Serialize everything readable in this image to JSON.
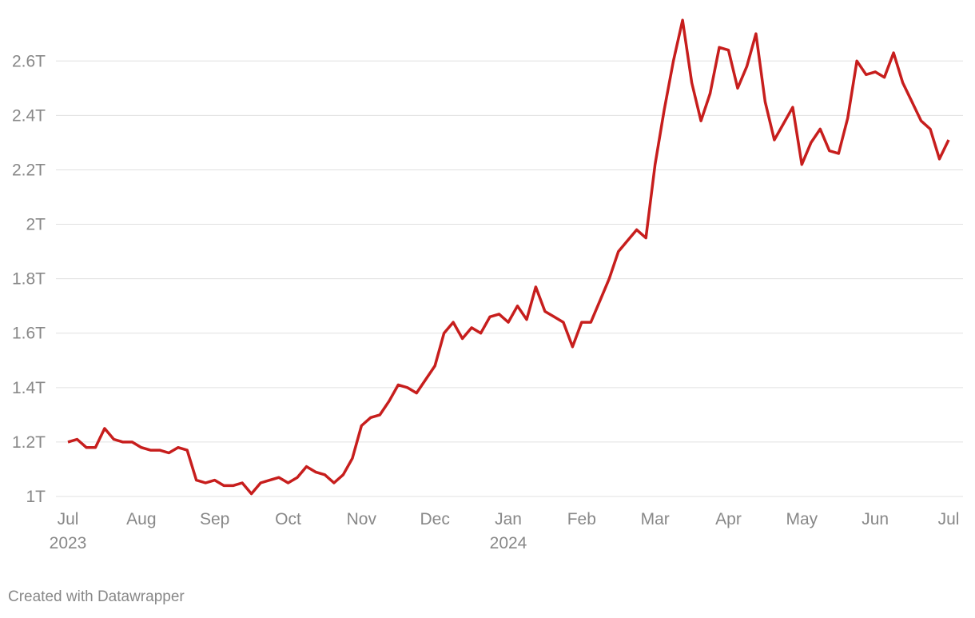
{
  "chart_data": {
    "type": "line",
    "source": "Created with Datawrapper",
    "categories": [
      "Jul",
      null,
      null,
      null,
      null,
      null,
      null,
      null,
      "Aug",
      null,
      null,
      null,
      null,
      null,
      null,
      null,
      "Sep",
      null,
      null,
      null,
      null,
      null,
      null,
      null,
      "Oct",
      null,
      null,
      null,
      null,
      null,
      null,
      null,
      "Nov",
      null,
      null,
      null,
      null,
      null,
      null,
      null,
      "Dec",
      null,
      null,
      null,
      null,
      null,
      null,
      null,
      "Jan",
      null,
      null,
      null,
      null,
      null,
      null,
      null,
      "Feb",
      null,
      null,
      null,
      null,
      null,
      null,
      null,
      "Mar",
      null,
      null,
      null,
      null,
      null,
      null,
      null,
      "Apr",
      null,
      null,
      null,
      null,
      null,
      null,
      null,
      "May",
      null,
      null,
      null,
      null,
      null,
      null,
      null,
      "Jun",
      null,
      null,
      null,
      null,
      null,
      null,
      null,
      "Jul"
    ],
    "category_years": [
      "2023",
      null,
      null,
      null,
      null,
      null,
      null,
      null,
      null,
      null,
      null,
      null,
      null,
      null,
      null,
      null,
      null,
      null,
      null,
      null,
      null,
      null,
      null,
      null,
      null,
      null,
      null,
      null,
      null,
      null,
      null,
      null,
      null,
      null,
      null,
      null,
      null,
      null,
      null,
      null,
      null,
      null,
      null,
      null,
      null,
      null,
      null,
      null,
      "2024",
      null,
      null,
      null,
      null,
      null,
      null,
      null,
      null,
      null,
      null,
      null,
      null,
      null,
      null,
      null,
      null,
      null,
      null,
      null,
      null,
      null,
      null,
      null,
      null,
      null,
      null,
      null,
      null,
      null,
      null,
      null,
      null,
      null,
      null,
      null,
      null,
      null,
      null,
      null,
      null,
      null,
      null,
      null,
      null,
      null,
      null,
      null,
      null
    ],
    "series": [
      {
        "color": "#c71e1d",
        "values": [
          1.2,
          1.21,
          1.18,
          1.18,
          1.25,
          1.21,
          1.2,
          1.2,
          1.18,
          1.17,
          1.17,
          1.16,
          1.18,
          1.17,
          1.06,
          1.05,
          1.06,
          1.04,
          1.04,
          1.05,
          1.01,
          1.05,
          1.06,
          1.07,
          1.05,
          1.07,
          1.11,
          1.09,
          1.08,
          1.05,
          1.08,
          1.14,
          1.26,
          1.29,
          1.3,
          1.35,
          1.41,
          1.4,
          1.38,
          1.43,
          1.48,
          1.6,
          1.64,
          1.58,
          1.62,
          1.6,
          1.66,
          1.67,
          1.64,
          1.7,
          1.65,
          1.77,
          1.68,
          1.66,
          1.64,
          1.55,
          1.64,
          1.64,
          1.72,
          1.8,
          1.9,
          1.94,
          1.98,
          1.95,
          2.22,
          2.42,
          2.6,
          2.75,
          2.52,
          2.38,
          2.48,
          2.65,
          2.64,
          2.5,
          2.58,
          2.7,
          2.45,
          2.31,
          2.37,
          2.43,
          2.22,
          2.3,
          2.35,
          2.27,
          2.26,
          2.39,
          2.6,
          2.55,
          2.56,
          2.54,
          2.63,
          2.52,
          2.45,
          2.38,
          2.35,
          2.24,
          2.31
        ]
      }
    ],
    "ylim": [
      1,
      2.78
    ],
    "yticks": [
      {
        "value": 1,
        "label": "1T"
      },
      {
        "value": 1.2,
        "label": "1.2T"
      },
      {
        "value": 1.4,
        "label": "1.4T"
      },
      {
        "value": 1.6,
        "label": "1.6T"
      },
      {
        "value": 1.8,
        "label": "1.8T"
      },
      {
        "value": 2,
        "label": "2T"
      },
      {
        "value": 2.2,
        "label": "2.2T"
      },
      {
        "value": 2.4,
        "label": "2.4T"
      },
      {
        "value": 2.6,
        "label": "2.6T"
      }
    ],
    "grid": true
  }
}
